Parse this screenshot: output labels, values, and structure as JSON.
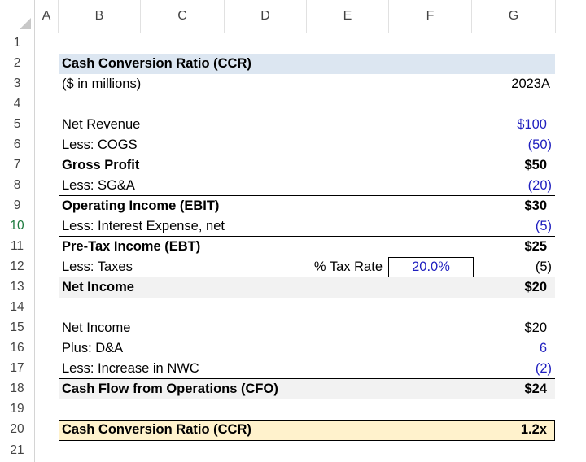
{
  "columns": [
    "A",
    "B",
    "C",
    "D",
    "E",
    "F",
    "G"
  ],
  "rows": [
    "1",
    "2",
    "3",
    "4",
    "5",
    "6",
    "7",
    "8",
    "9",
    "10",
    "11",
    "12",
    "13",
    "14",
    "15",
    "16",
    "17",
    "18",
    "19",
    "20",
    "21"
  ],
  "sheet": {
    "title": "Cash Conversion Ratio (CCR)",
    "units": "($ in millions)",
    "period": "2023A",
    "net_revenue": {
      "label": "Net Revenue",
      "value": "$100"
    },
    "cogs": {
      "label": "Less: COGS",
      "value": "(50)"
    },
    "gross_profit": {
      "label": "Gross Profit",
      "value": "$50"
    },
    "sga": {
      "label": "Less: SG&A",
      "value": "(20)"
    },
    "ebit": {
      "label": "Operating Income (EBIT)",
      "value": "$30"
    },
    "interest": {
      "label": "Less: Interest Expense, net",
      "value": "(5)"
    },
    "ebt": {
      "label": "Pre-Tax Income (EBT)",
      "value": "$25"
    },
    "taxes": {
      "label": "Less: Taxes",
      "rate_label": "% Tax Rate",
      "rate_value": "20.0%",
      "value": "(5)"
    },
    "net_income": {
      "label": "Net Income",
      "value": "$20"
    },
    "net_income_2": {
      "label": "Net Income",
      "value": "$20"
    },
    "da": {
      "label": "Plus: D&A",
      "value": "6"
    },
    "nwc": {
      "label": "Less: Increase in NWC",
      "value": "(2)"
    },
    "cfo": {
      "label": "Cash Flow from Operations (CFO)",
      "value": "$24"
    },
    "ccr": {
      "label": "Cash Conversion Ratio (CCR)",
      "value": "1.2x"
    }
  },
  "colors": {
    "title_band": "#dce6f1",
    "net_income_band": "#f2f2f2",
    "ccr_band": "#fff2cc",
    "input_blue": "#1f1fbf"
  }
}
